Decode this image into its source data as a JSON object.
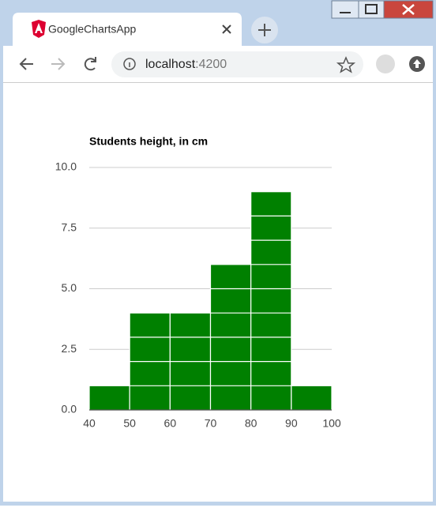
{
  "browser": {
    "tab_title": "GoogleChartsApp",
    "url_host": "localhost",
    "url_port": ":4200"
  },
  "chart_data": {
    "type": "histogram",
    "title": "Students height, in cm",
    "bins": [
      40,
      50,
      60,
      70,
      80,
      90,
      100
    ],
    "counts": [
      1,
      4,
      4,
      6,
      9,
      1
    ],
    "color": "#008000",
    "xlim": [
      40,
      100
    ],
    "xticks": [
      40,
      50,
      60,
      70,
      80,
      90,
      100
    ],
    "ylim": [
      0,
      10
    ],
    "yticks": [
      {
        "value": 0,
        "label": "0.0"
      },
      2.5,
      {
        "value": 5,
        "label": "5.0"
      },
      7.5,
      {
        "value": 10,
        "label": "10.0"
      }
    ],
    "grid": true
  }
}
